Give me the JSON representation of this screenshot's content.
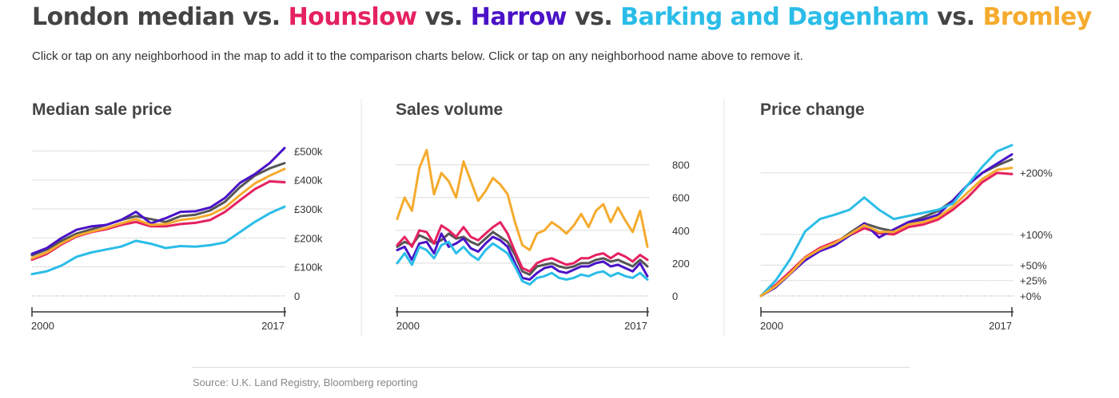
{
  "header": {
    "title_parts": [
      {
        "text": "London median",
        "color": "#444444"
      },
      {
        "text": " vs. ",
        "color": "#444444"
      },
      {
        "text": "Hounslow",
        "color": "#e5215f"
      },
      {
        "text": " vs. ",
        "color": "#444444"
      },
      {
        "text": "Harrow",
        "color": "#4a12c7"
      },
      {
        "text": " vs. ",
        "color": "#444444"
      },
      {
        "text": "Barking and Dagenham",
        "color": "#2bbde8"
      },
      {
        "text": " vs. ",
        "color": "#444444"
      },
      {
        "text": "Bromley",
        "color": "#f5ab2d"
      }
    ],
    "subtitle": "Click or tap on any neighborhood in the map to add it to the comparison charts below. Click or tap on any neighborhood name above to remove it."
  },
  "source": "Source: U.K. Land Registry, Bloomberg reporting",
  "chart_data": [
    {
      "type": "line",
      "title": "Median sale price",
      "xlim": [
        2000,
        2017
      ],
      "x_ticks": [
        2000,
        2017
      ],
      "ylim": [
        0,
        520000
      ],
      "y_ticks": [
        0,
        100000,
        200000,
        300000,
        400000,
        500000
      ],
      "y_tick_labels": [
        "0",
        "£100k",
        "£200k",
        "£300k",
        "£400k",
        "£500k"
      ],
      "x": [
        2000,
        2001,
        2002,
        2003,
        2004,
        2005,
        2006,
        2007,
        2008,
        2009,
        2010,
        2011,
        2012,
        2013,
        2014,
        2015,
        2016,
        2017
      ],
      "series": [
        {
          "name": "London median",
          "color": "#555555",
          "values": [
            140000,
            160000,
            190000,
            215000,
            230000,
            245000,
            262000,
            275000,
            265000,
            255000,
            275000,
            280000,
            295000,
            325000,
            375000,
            415000,
            440000,
            458000
          ]
        },
        {
          "name": "Hounslow",
          "color": "#e5215f",
          "values": [
            125000,
            145000,
            178000,
            205000,
            220000,
            230000,
            245000,
            255000,
            240000,
            240000,
            248000,
            252000,
            262000,
            290000,
            330000,
            368000,
            395000,
            392000
          ]
        },
        {
          "name": "Harrow",
          "color": "#4a12c7",
          "values": [
            145000,
            165000,
            200000,
            228000,
            240000,
            245000,
            262000,
            290000,
            250000,
            268000,
            290000,
            292000,
            305000,
            338000,
            390000,
            420000,
            458000,
            510000
          ]
        },
        {
          "name": "Barking and Dagenham",
          "color": "#2bbde8",
          "values": [
            75000,
            85000,
            105000,
            135000,
            150000,
            160000,
            170000,
            190000,
            180000,
            165000,
            172000,
            170000,
            175000,
            185000,
            220000,
            255000,
            285000,
            308000
          ]
        },
        {
          "name": "Bromley",
          "color": "#f5ab2d",
          "values": [
            130000,
            150000,
            182000,
            208000,
            222000,
            234000,
            250000,
            265000,
            245000,
            248000,
            262000,
            268000,
            280000,
            305000,
            348000,
            388000,
            415000,
            438000
          ]
        }
      ]
    },
    {
      "type": "line",
      "title": "Sales volume",
      "xlim": [
        2000,
        2017
      ],
      "x_ticks": [
        2000,
        2017
      ],
      "ylim": [
        0,
        920
      ],
      "y_ticks": [
        0,
        200,
        400,
        600,
        800
      ],
      "y_tick_labels": [
        "0",
        "200",
        "400",
        "600",
        "800"
      ],
      "x": [
        2000,
        2000.5,
        2001,
        2001.5,
        2002,
        2002.5,
        2003,
        2003.5,
        2004,
        2004.5,
        2005,
        2005.5,
        2006,
        2006.5,
        2007,
        2007.5,
        2008,
        2008.5,
        2009,
        2009.5,
        2010,
        2010.5,
        2011,
        2011.5,
        2012,
        2012.5,
        2013,
        2013.5,
        2014,
        2014.5,
        2015,
        2015.5,
        2016,
        2016.5,
        2017
      ],
      "series": [
        {
          "name": "London median",
          "color": "#555555",
          "values": [
            300,
            330,
            310,
            370,
            350,
            320,
            340,
            380,
            350,
            360,
            330,
            310,
            350,
            390,
            360,
            330,
            250,
            150,
            130,
            180,
            190,
            200,
            180,
            170,
            180,
            200,
            200,
            220,
            230,
            210,
            220,
            200,
            180,
            220,
            180
          ]
        },
        {
          "name": "Hounslow",
          "color": "#e5215f",
          "values": [
            310,
            360,
            300,
            400,
            390,
            320,
            430,
            400,
            360,
            420,
            360,
            340,
            380,
            420,
            450,
            380,
            270,
            170,
            150,
            200,
            220,
            230,
            210,
            190,
            200,
            230,
            230,
            250,
            260,
            230,
            260,
            240,
            210,
            250,
            220
          ]
        },
        {
          "name": "Harrow",
          "color": "#4a12c7",
          "values": [
            280,
            300,
            220,
            320,
            330,
            260,
            380,
            300,
            320,
            350,
            290,
            270,
            320,
            360,
            340,
            300,
            200,
            110,
            100,
            140,
            170,
            180,
            150,
            140,
            160,
            180,
            180,
            200,
            210,
            180,
            190,
            170,
            150,
            200,
            120
          ]
        },
        {
          "name": "Barking and Dagenham",
          "color": "#2bbde8",
          "values": [
            200,
            260,
            190,
            300,
            280,
            230,
            310,
            330,
            260,
            300,
            250,
            220,
            280,
            320,
            290,
            260,
            180,
            90,
            70,
            110,
            120,
            140,
            110,
            100,
            110,
            130,
            120,
            140,
            150,
            120,
            140,
            120,
            110,
            140,
            100
          ]
        },
        {
          "name": "Bromley",
          "color": "#f5ab2d",
          "values": [
            470,
            600,
            520,
            780,
            890,
            620,
            750,
            700,
            600,
            820,
            700,
            580,
            640,
            720,
            680,
            620,
            450,
            310,
            280,
            380,
            400,
            450,
            420,
            380,
            430,
            500,
            420,
            520,
            560,
            450,
            540,
            460,
            390,
            520,
            300
          ]
        }
      ]
    },
    {
      "type": "line",
      "title": "Price change",
      "xlim": [
        2000,
        2017
      ],
      "x_ticks": [
        2000,
        2017
      ],
      "ylim": [
        0,
        245
      ],
      "y_ticks": [
        0,
        25,
        50,
        100,
        200
      ],
      "y_tick_labels": [
        "+0%",
        "+25%",
        "+50%",
        "+100%",
        "+200%"
      ],
      "x": [
        2000,
        2001,
        2002,
        2003,
        2004,
        2005,
        2006,
        2007,
        2008,
        2009,
        2010,
        2011,
        2012,
        2013,
        2014,
        2015,
        2016,
        2017
      ],
      "series": [
        {
          "name": "London median",
          "color": "#555555",
          "values": [
            0,
            15,
            38,
            60,
            75,
            85,
            102,
            118,
            110,
            105,
            120,
            128,
            138,
            155,
            180,
            200,
            212,
            222
          ]
        },
        {
          "name": "Hounslow",
          "color": "#e5215f",
          "values": [
            0,
            18,
            40,
            63,
            78,
            88,
            98,
            110,
            102,
            100,
            112,
            116,
            124,
            140,
            160,
            185,
            200,
            198
          ]
        },
        {
          "name": "Harrow",
          "color": "#4a12c7",
          "values": [
            0,
            14,
            36,
            58,
            73,
            82,
            98,
            118,
            95,
            108,
            120,
            124,
            132,
            155,
            180,
            200,
            215,
            230
          ]
        },
        {
          "name": "Barking and Dagenham",
          "color": "#2bbde8",
          "values": [
            0,
            25,
            60,
            105,
            125,
            132,
            140,
            160,
            140,
            125,
            130,
            135,
            140,
            150,
            180,
            210,
            235,
            245
          ]
        },
        {
          "name": "Bromley",
          "color": "#f5ab2d",
          "values": [
            0,
            16,
            37,
            62,
            76,
            86,
            100,
            115,
            104,
            104,
            116,
            120,
            128,
            145,
            168,
            190,
            205,
            208
          ]
        }
      ]
    }
  ]
}
